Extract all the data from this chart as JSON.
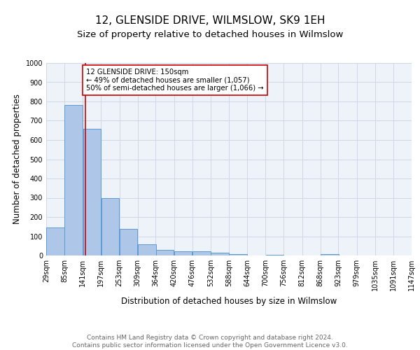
{
  "title1": "12, GLENSIDE DRIVE, WILMSLOW, SK9 1EH",
  "title2": "Size of property relative to detached houses in Wilmslow",
  "xlabel": "Distribution of detached houses by size in Wilmslow",
  "ylabel": "Number of detached properties",
  "bar_left_edges": [
    29,
    85,
    141,
    197,
    253,
    309,
    364,
    420,
    476,
    532,
    588,
    644,
    700,
    756,
    812,
    868,
    923,
    979,
    1035,
    1091
  ],
  "bar_heights": [
    145,
    783,
    658,
    298,
    138,
    57,
    30,
    22,
    22,
    14,
    6,
    0,
    5,
    0,
    0,
    8,
    0,
    0,
    0,
    0
  ],
  "bin_width": 56,
  "bar_color": "#aec6e8",
  "bar_edge_color": "#5b9bd5",
  "tick_labels": [
    "29sqm",
    "85sqm",
    "141sqm",
    "197sqm",
    "253sqm",
    "309sqm",
    "364sqm",
    "420sqm",
    "476sqm",
    "532sqm",
    "588sqm",
    "644sqm",
    "700sqm",
    "756sqm",
    "812sqm",
    "868sqm",
    "923sqm",
    "979sqm",
    "1035sqm",
    "1091sqm",
    "1147sqm"
  ],
  "vline_x": 150,
  "vline_color": "#cc0000",
  "annotation_text": "12 GLENSIDE DRIVE: 150sqm\n← 49% of detached houses are smaller (1,057)\n50% of semi-detached houses are larger (1,066) →",
  "annotation_box_color": "#ffffff",
  "annotation_box_edge_color": "#cc0000",
  "ylim": [
    0,
    1000
  ],
  "yticks": [
    0,
    100,
    200,
    300,
    400,
    500,
    600,
    700,
    800,
    900,
    1000
  ],
  "grid_color": "#d0d8e8",
  "bg_color": "#eef2f9",
  "footer_text": "Contains HM Land Registry data © Crown copyright and database right 2024.\nContains public sector information licensed under the Open Government Licence v3.0.",
  "title1_fontsize": 11,
  "title2_fontsize": 9.5,
  "xlabel_fontsize": 8.5,
  "ylabel_fontsize": 8.5,
  "tick_fontsize": 7,
  "footer_fontsize": 6.5
}
